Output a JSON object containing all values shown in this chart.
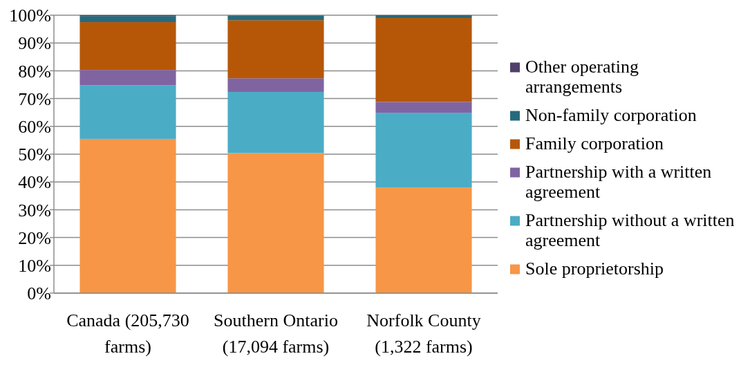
{
  "chart_data": {
    "type": "bar",
    "stacked": true,
    "categories": [
      "Canada (205,730 farms)",
      "Southern Ontario (17,094 farms)",
      "Norfolk County (1,322 farms)"
    ],
    "series": [
      {
        "name": "Sole proprietorship",
        "color": "#f79646",
        "values": [
          55.5,
          50.4,
          38.0
        ]
      },
      {
        "name": "Partnership without a written agreement",
        "color": "#4bacc6",
        "values": [
          19.3,
          22.0,
          26.9
        ]
      },
      {
        "name": "Partnership with a written agreement",
        "color": "#8064a2",
        "values": [
          5.5,
          4.9,
          3.9
        ]
      },
      {
        "name": "Family corporation",
        "color": "#b65708",
        "values": [
          17.2,
          20.9,
          30.2
        ]
      },
      {
        "name": "Non-family corporation",
        "color": "#276a7c",
        "values": [
          2.2,
          1.7,
          0.8
        ]
      },
      {
        "name": "Other operating arrangements",
        "color": "#4f3f6b",
        "values": [
          0.3,
          null,
          0.2
        ]
      }
    ],
    "ylim": [
      0,
      100
    ],
    "yticks": [
      {
        "value": 0,
        "label": "0%"
      },
      {
        "value": 10,
        "label": "10%"
      },
      {
        "value": 20,
        "label": "20%"
      },
      {
        "value": 30,
        "label": "30%"
      },
      {
        "value": 40,
        "label": "40%"
      },
      {
        "value": 50,
        "label": "50%"
      },
      {
        "value": 60,
        "label": "60%"
      },
      {
        "value": 70,
        "label": "70%"
      },
      {
        "value": 80,
        "label": "80%"
      },
      {
        "value": 90,
        "label": "90%"
      },
      {
        "value": 100,
        "label": "100%"
      }
    ],
    "grid": "y",
    "legend": "right"
  }
}
